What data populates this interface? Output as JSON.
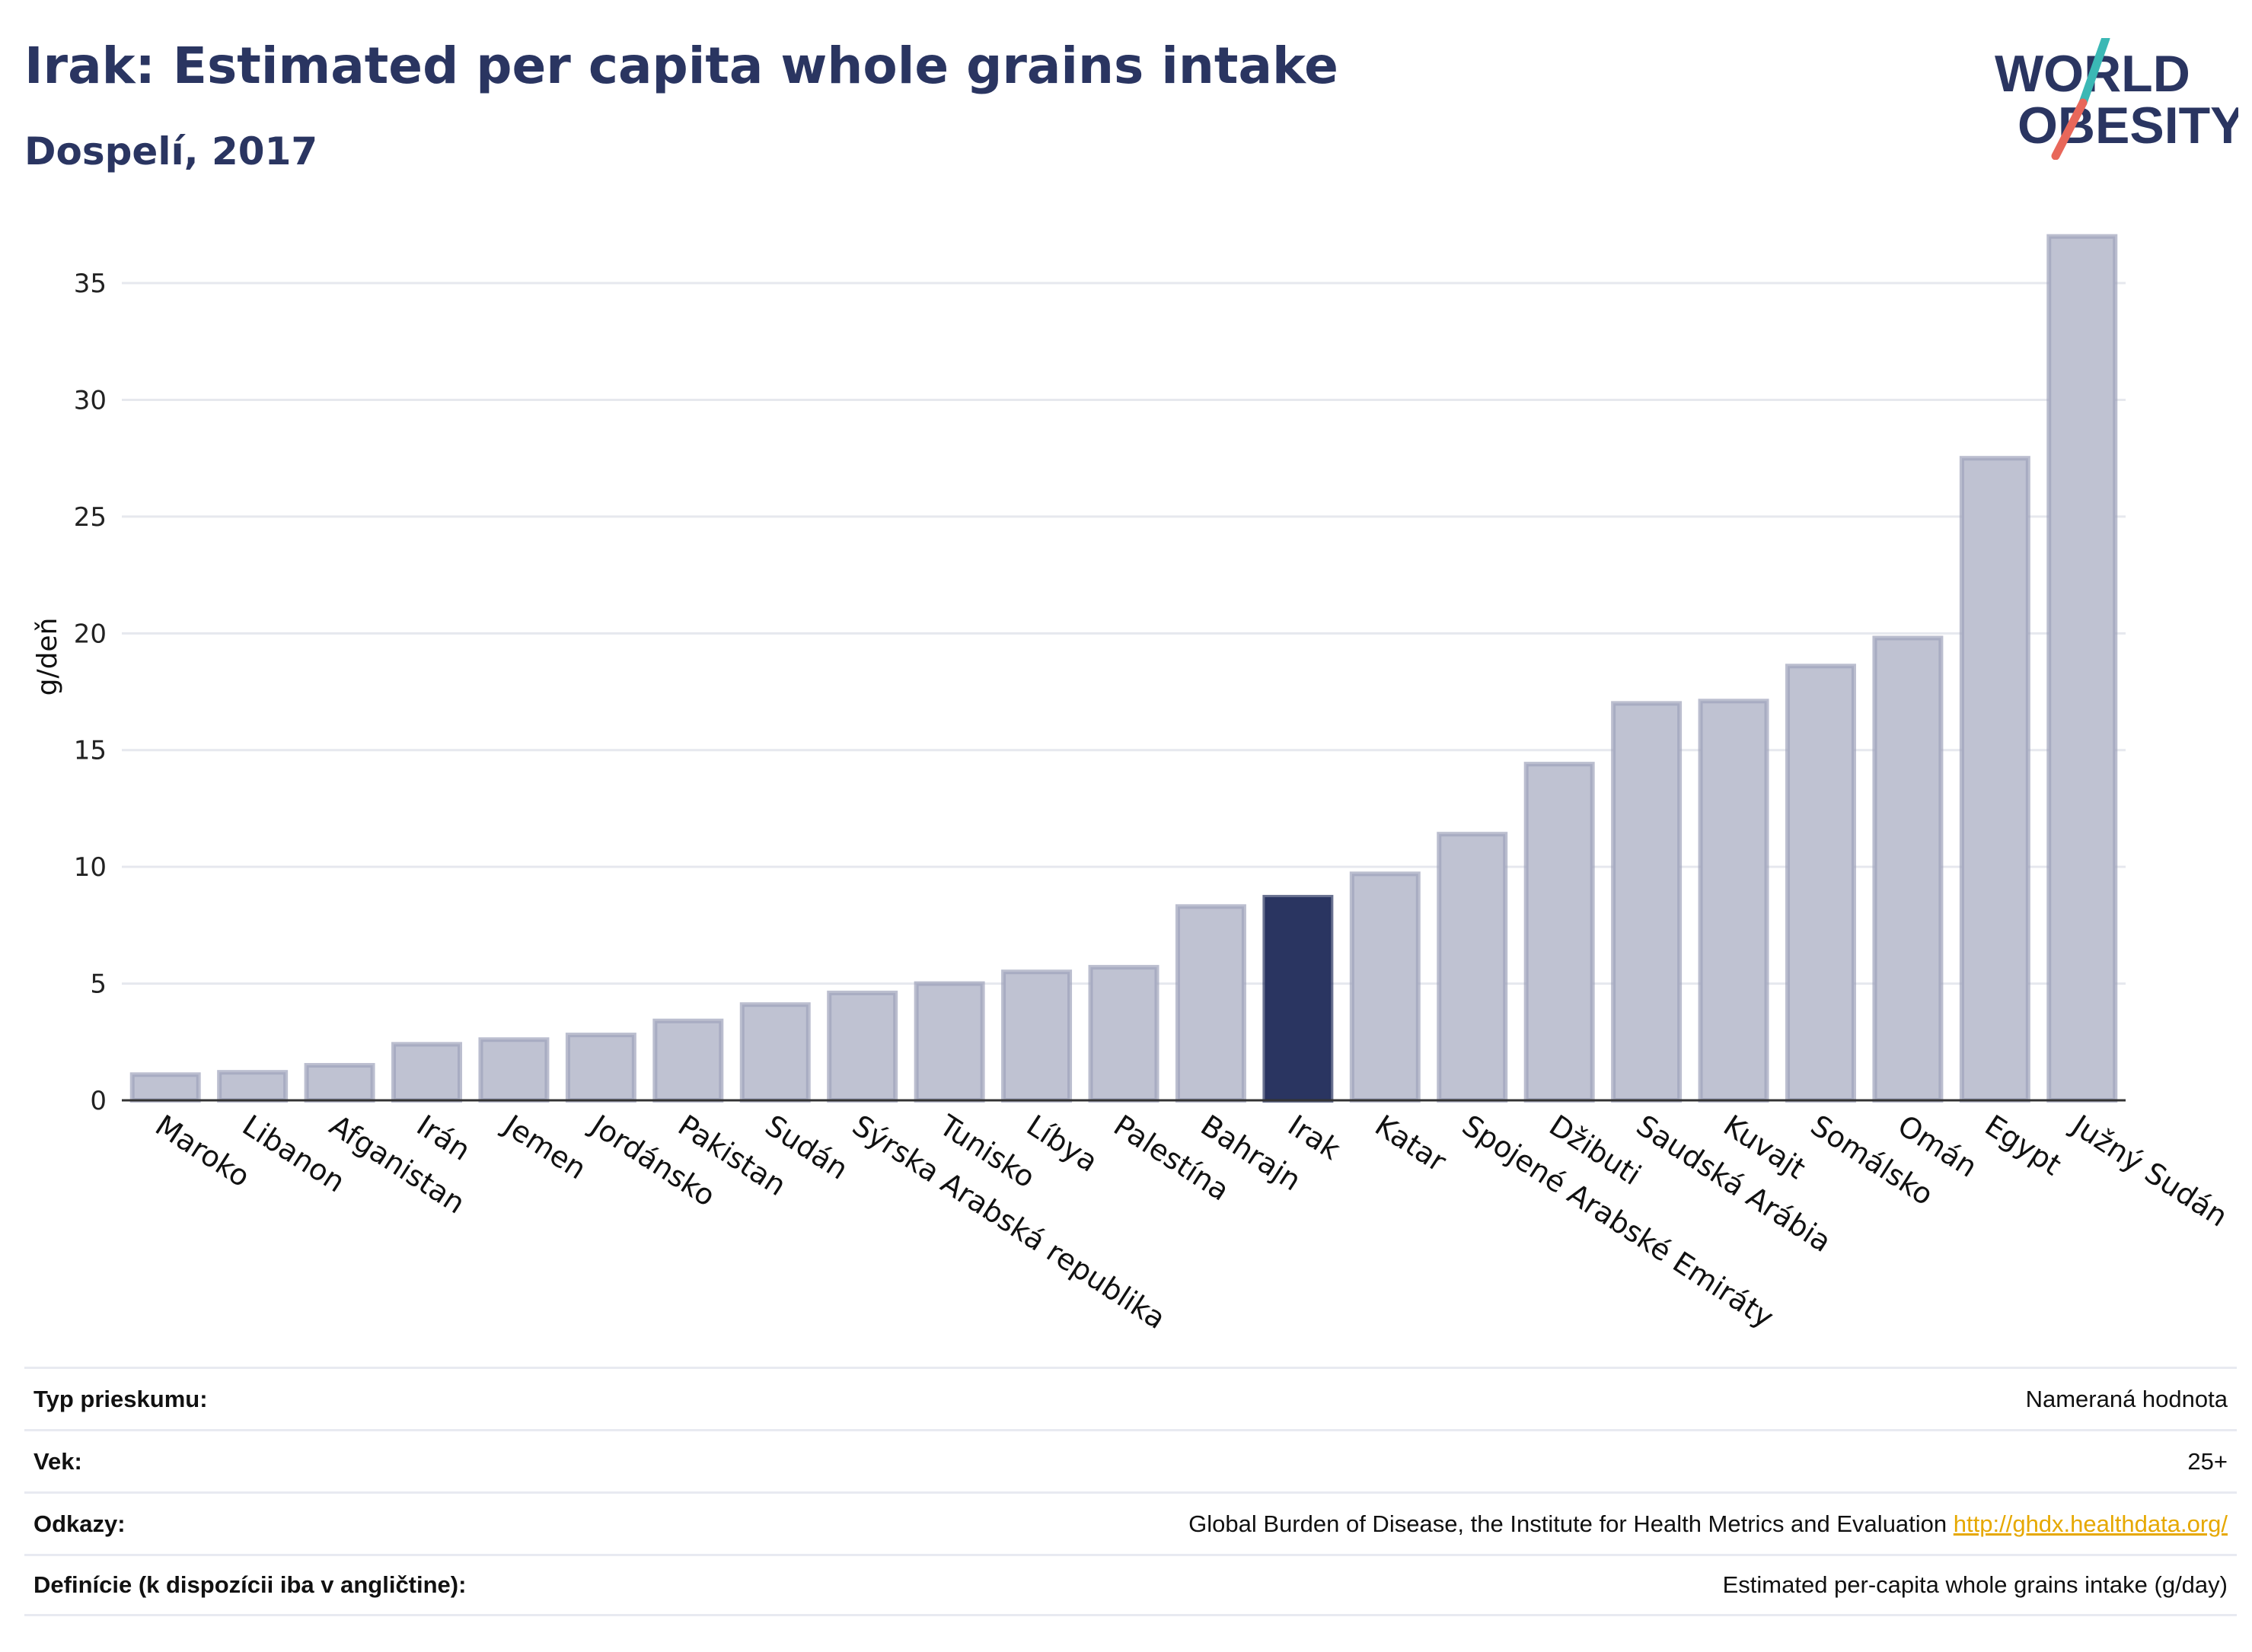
{
  "header": {
    "title": "Irak: Estimated per capita whole grains intake",
    "subtitle": "Dospelí, 2017"
  },
  "logo": {
    "line1": "WORLD",
    "line2": "OBESITY",
    "accent_teal": "#3bb8b5",
    "accent_red": "#e8675a"
  },
  "colors": {
    "bar": "#bfc2d2",
    "bar_stroke": "#9ea3bb",
    "highlight": "#2a3561",
    "grid": "#e6e8ee",
    "text": "#2a3561"
  },
  "chart_data": {
    "type": "bar",
    "ylabel": "g/deň",
    "ylim": [
      0,
      38
    ],
    "yticks": [
      0,
      5,
      10,
      15,
      20,
      25,
      30,
      35
    ],
    "grid": true,
    "highlight": "Irak",
    "categories": [
      "Maroko",
      "Libanon",
      "Afganistan",
      "Irán",
      "Jemen",
      "Jordánsko",
      "Pakistan",
      "Sudán",
      "Sýrska Arabská republika",
      "Tunisko",
      "Líbya",
      "Palestína",
      "Bahrajn",
      "Irak",
      "Katar",
      "Spojené Arabské Emiráty",
      "Džibuti",
      "Saudská Arábia",
      "Kuvajt",
      "Somálsko",
      "Omán",
      "Egypt",
      "Južný Sudán"
    ],
    "values": [
      1.1,
      1.2,
      1.5,
      2.4,
      2.6,
      2.8,
      3.4,
      4.1,
      4.6,
      5.0,
      5.5,
      5.7,
      8.3,
      8.7,
      9.7,
      11.4,
      14.4,
      17.0,
      17.1,
      18.6,
      19.8,
      27.5,
      37.0
    ]
  },
  "info": {
    "rows": [
      {
        "label": "Typ prieskumu:",
        "value": "Nameraná hodnota",
        "link": ""
      },
      {
        "label": "Vek:",
        "value": "25+",
        "link": ""
      },
      {
        "label": "Odkazy:",
        "value": "Global Burden of Disease, the Institute for Health Metrics and Evaluation",
        "link": "http://ghdx.healthdata.org/"
      },
      {
        "label": "Definície (k dispozícii iba v angličtine):",
        "value": "Estimated per-capita whole grains intake (g/day)",
        "link": ""
      }
    ]
  }
}
